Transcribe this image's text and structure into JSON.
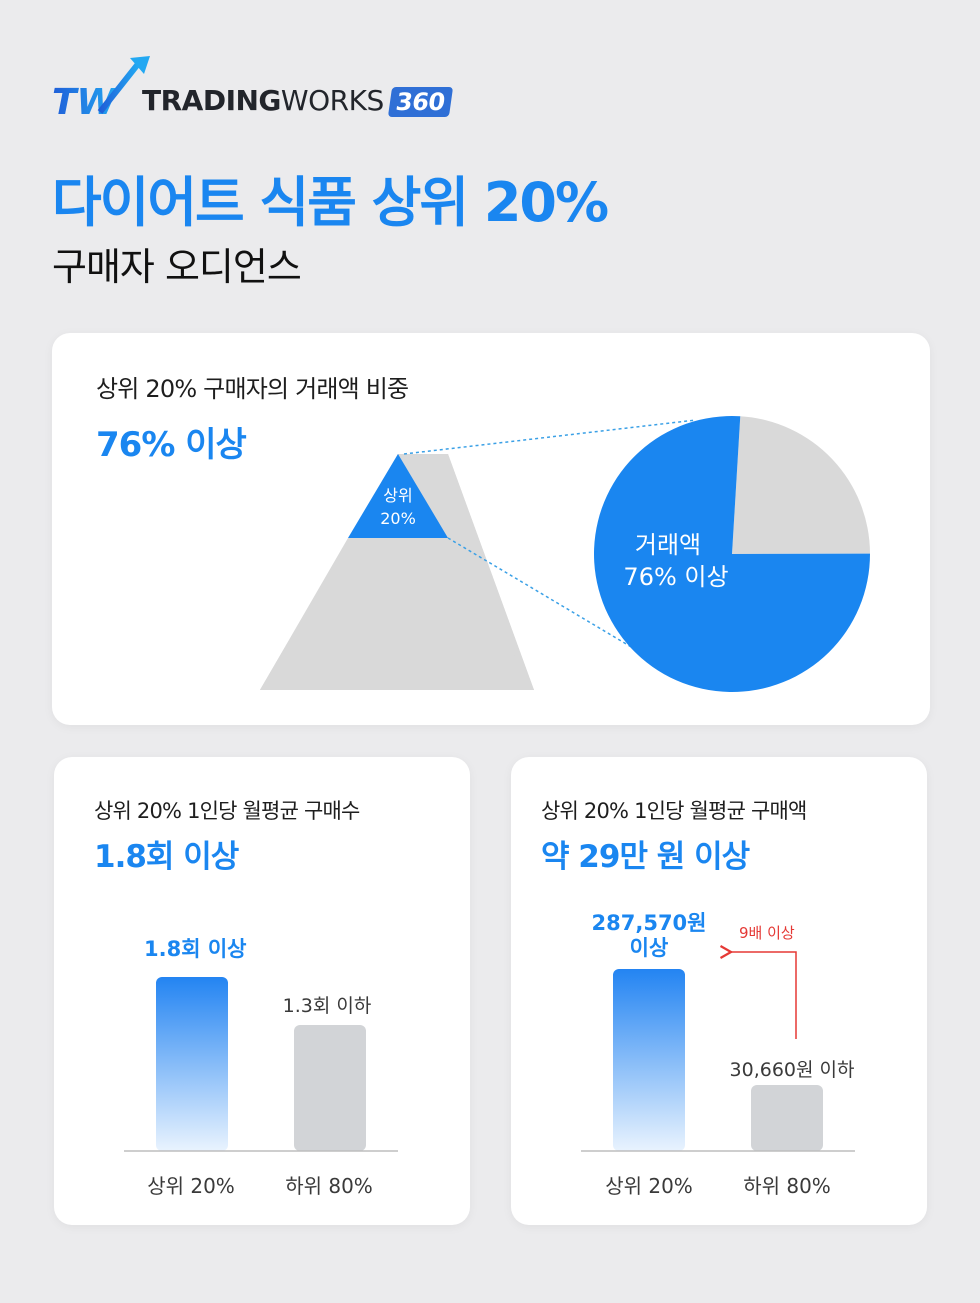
{
  "brand": {
    "logo_mark": "TW",
    "name_part1": "TRADING",
    "name_part2": "WORKS",
    "badge": "360",
    "colors": {
      "brand_blue": "#2f6fd6",
      "accent_blue": "#1a86f0",
      "gray": "#d9d9d9",
      "red": "#e53935"
    }
  },
  "header": {
    "title": "다이어트 식품 상위 20%",
    "subtitle": "구매자 오디언스"
  },
  "share_card": {
    "label": "상위 20% 구매자의 거래액 비중",
    "value": "76% 이상",
    "pyramid_top_line1": "상위",
    "pyramid_top_line2": "20%",
    "pie_label_line1": "거래액",
    "pie_label_line2": "76% 이상"
  },
  "count_card": {
    "label": "상위 20% 1인당 월평균 구매수",
    "value": "1.8회 이상",
    "bars": [
      {
        "category": "상위 20%",
        "value_text": "1.8회 이상"
      },
      {
        "category": "하위 80%",
        "value_text": "1.3회 이하"
      }
    ]
  },
  "amount_card": {
    "label": "상위 20% 1인당 월평균 구매액",
    "value": "약 29만 원 이상",
    "bars": [
      {
        "category": "상위 20%",
        "value_text_line1": "287,570원",
        "value_text_line2": "이상"
      },
      {
        "category": "하위 80%",
        "value_text": "30,660원 이하"
      }
    ],
    "multiplier": "9배 이상"
  },
  "chart_data": [
    {
      "type": "pie",
      "slices": [
        {
          "label": "거래액",
          "value": 76
        },
        {
          "label": "",
          "value": 24
        }
      ]
    },
    {
      "type": "bar",
      "categories": [
        "상위 20%",
        "하위 80%"
      ],
      "values": [
        1.8,
        1.3
      ],
      "data_labels": [
        "1.8회 이상",
        "1.3회 이하"
      ]
    },
    {
      "type": "bar",
      "categories": [
        "상위 20%",
        "하위 80%"
      ],
      "values": [
        287570,
        30660
      ],
      "data_labels": [
        "287,570원 이상",
        "30,660원 이하"
      ],
      "annotations": [
        "9배 이상"
      ]
    }
  ]
}
